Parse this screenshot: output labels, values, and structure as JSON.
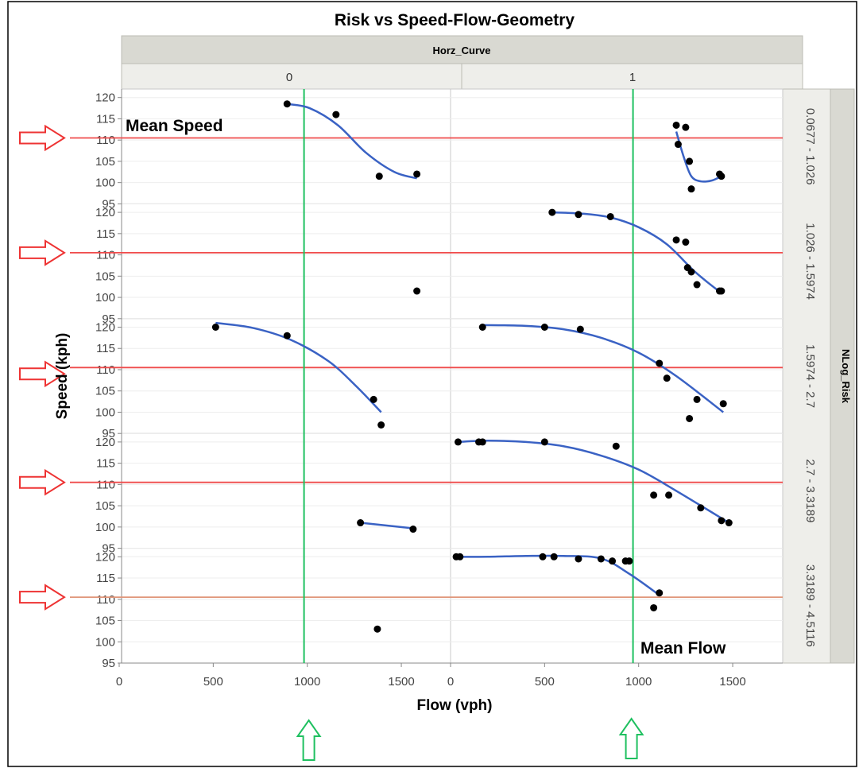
{
  "chart_data": {
    "type": "scatter",
    "title": "Risk vs Speed-Flow-Geometry",
    "column_group_label": "Horz_Curve",
    "column_labels": [
      "0",
      "1"
    ],
    "row_group_label": "NLog_Risk",
    "row_labels": [
      "0.0677 - 1.026",
      "1.026 - 1.5974",
      "1.5974 - 2.7",
      "2.7 - 3.3189",
      "3.3189 - 4.5116"
    ],
    "xlabel": "Flow (vph)",
    "ylabel": "Speed (kph)",
    "xlim": [
      0,
      1750
    ],
    "ylim": [
      95,
      122
    ],
    "x_ticks": [
      "0",
      "500",
      "1000",
      "1500"
    ],
    "y_ticks": [
      "95",
      "100",
      "105",
      "110",
      "115",
      "120"
    ],
    "mean_speed_label": "Mean Speed",
    "mean_flow_label": "Mean Flow",
    "mean_speed": 110.5,
    "mean_flow": 970,
    "panels": [
      {
        "row": 0,
        "col": 0,
        "points": [
          [
            880,
            118.5
          ],
          [
            1140,
            116
          ],
          [
            1370,
            101.5
          ],
          [
            1570,
            102
          ]
        ],
        "fit": [
          [
            880,
            118.5
          ],
          [
            1000,
            117.5
          ],
          [
            1150,
            113.5
          ],
          [
            1300,
            107
          ],
          [
            1450,
            102.5
          ],
          [
            1570,
            101
          ]
        ]
      },
      {
        "row": 0,
        "col": 1,
        "points": [
          [
            1200,
            113.5
          ],
          [
            1250,
            113
          ],
          [
            1210,
            109
          ],
          [
            1270,
            105
          ],
          [
            1280,
            98.5
          ],
          [
            1430,
            102
          ],
          [
            1440,
            101.5
          ]
        ],
        "fit": [
          [
            1200,
            112
          ],
          [
            1240,
            106
          ],
          [
            1280,
            101.5
          ],
          [
            1330,
            100.3
          ],
          [
            1390,
            100.5
          ],
          [
            1440,
            101.5
          ]
        ]
      },
      {
        "row": 1,
        "col": 0,
        "points": [
          [
            1570,
            101.5
          ]
        ],
        "fit": []
      },
      {
        "row": 1,
        "col": 1,
        "points": [
          [
            540,
            120
          ],
          [
            680,
            119.5
          ],
          [
            850,
            119
          ],
          [
            1200,
            113.5
          ],
          [
            1250,
            113
          ],
          [
            1260,
            107
          ],
          [
            1280,
            106
          ],
          [
            1310,
            103
          ],
          [
            1430,
            101.5
          ],
          [
            1440,
            101.5
          ]
        ],
        "fit": [
          [
            540,
            120
          ],
          [
            700,
            119.7
          ],
          [
            850,
            118.8
          ],
          [
            1000,
            116.5
          ],
          [
            1150,
            112.5
          ],
          [
            1300,
            106
          ],
          [
            1440,
            101
          ]
        ]
      },
      {
        "row": 2,
        "col": 0,
        "points": [
          [
            500,
            120
          ],
          [
            880,
            118
          ],
          [
            1340,
            103
          ],
          [
            1380,
            97
          ]
        ],
        "fit": [
          [
            500,
            121
          ],
          [
            700,
            119.8
          ],
          [
            900,
            117
          ],
          [
            1100,
            112
          ],
          [
            1250,
            106
          ],
          [
            1380,
            100
          ]
        ]
      },
      {
        "row": 2,
        "col": 1,
        "points": [
          [
            170,
            120
          ],
          [
            500,
            120
          ],
          [
            690,
            119.5
          ],
          [
            1110,
            111.5
          ],
          [
            1150,
            108
          ],
          [
            1270,
            98.5
          ],
          [
            1310,
            103
          ],
          [
            1450,
            102
          ]
        ],
        "fit": [
          [
            170,
            120.5
          ],
          [
            400,
            120.3
          ],
          [
            600,
            119.5
          ],
          [
            800,
            117.5
          ],
          [
            1000,
            114
          ],
          [
            1200,
            108.5
          ],
          [
            1450,
            100
          ]
        ]
      },
      {
        "row": 3,
        "col": 0,
        "points": [
          [
            1270,
            101
          ],
          [
            1550,
            99.5
          ]
        ],
        "fit": [
          [
            1270,
            101
          ],
          [
            1550,
            99.7
          ]
        ]
      },
      {
        "row": 3,
        "col": 1,
        "points": [
          [
            40,
            120
          ],
          [
            150,
            120
          ],
          [
            170,
            120
          ],
          [
            500,
            120
          ],
          [
            880,
            119
          ],
          [
            1080,
            107.5
          ],
          [
            1160,
            107.5
          ],
          [
            1330,
            104.5
          ],
          [
            1440,
            101.5
          ],
          [
            1480,
            101
          ]
        ],
        "fit": [
          [
            40,
            120
          ],
          [
            200,
            120.3
          ],
          [
            400,
            120
          ],
          [
            600,
            119
          ],
          [
            800,
            116.8
          ],
          [
            1000,
            113.5
          ],
          [
            1200,
            108.5
          ],
          [
            1480,
            101
          ]
        ]
      },
      {
        "row": 4,
        "col": 0,
        "points": [
          [
            1360,
            103
          ]
        ],
        "fit": []
      },
      {
        "row": 4,
        "col": 1,
        "points": [
          [
            30,
            120
          ],
          [
            50,
            120
          ],
          [
            490,
            120
          ],
          [
            550,
            120
          ],
          [
            680,
            119.5
          ],
          [
            800,
            119.5
          ],
          [
            860,
            119
          ],
          [
            930,
            119
          ],
          [
            950,
            119
          ],
          [
            1080,
            108
          ],
          [
            1110,
            111.5
          ]
        ],
        "fit": [
          [
            30,
            120
          ],
          [
            200,
            120
          ],
          [
            400,
            120.2
          ],
          [
            600,
            120.2
          ],
          [
            800,
            119.6
          ],
          [
            950,
            116
          ],
          [
            1110,
            111
          ]
        ]
      }
    ]
  }
}
